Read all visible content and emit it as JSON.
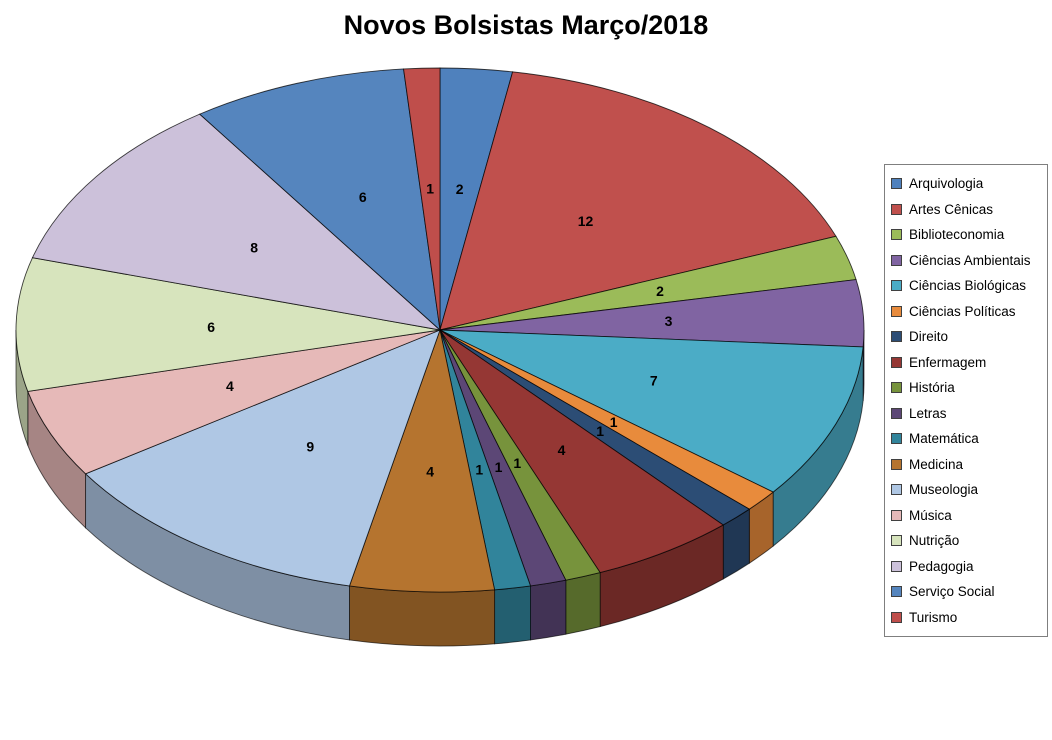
{
  "chart_data": {
    "type": "pie",
    "style": "3d",
    "title": "Novos Bolsistas Março/2018",
    "legend_position": "right",
    "data_labels": "values",
    "categories": [
      "Arquivologia",
      "Artes Cênicas",
      "Biblioteconomia",
      "Ciências Ambientais",
      "Ciências Biológicas",
      "Ciências Políticas",
      "Direito",
      "Enfermagem",
      "História",
      "Letras",
      "Matemática",
      "Medicina",
      "Museologia",
      "Música",
      "Nutrição",
      "Pedagogia",
      "Serviço Social",
      "Turismo"
    ],
    "values": [
      2,
      12,
      2,
      3,
      7,
      1,
      1,
      4,
      1,
      1,
      1,
      4,
      9,
      4,
      6,
      8,
      6,
      1
    ],
    "colors": [
      "#4F81BD",
      "#C0504D",
      "#9BBB59",
      "#8064A2",
      "#4BACC6",
      "#E88B3C",
      "#2C4D75",
      "#953734",
      "#77933C",
      "#5C4776",
      "#31849B",
      "#B5742F",
      "#AFC7E4",
      "#E6B9B8",
      "#D7E4BD",
      "#CCC1DA",
      "#5585BE",
      "#BF4E4B"
    ],
    "text_color": "#000000",
    "legend_border_color": "#7f7f7f",
    "background_color": "#ffffff"
  }
}
